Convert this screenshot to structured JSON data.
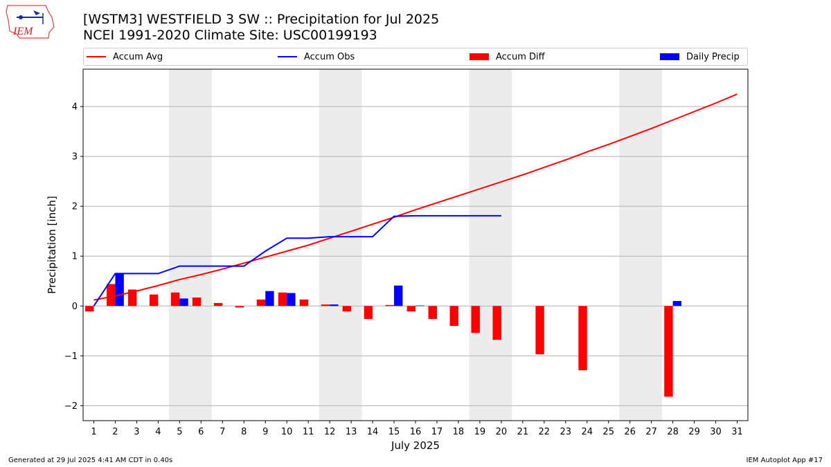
{
  "header": {
    "title_line1": "[WSTM3] WESTFIELD 3 SW :: Precipitation for Jul 2025",
    "title_line2": "NCEI 1991-2020 Climate Site: USC00199193",
    "logo_text": "IEM"
  },
  "legend": {
    "accum_avg": "Accum Avg",
    "accum_obs": "Accum Obs",
    "accum_diff": "Accum Diff",
    "daily_precip": "Daily Precip"
  },
  "footer": {
    "generated": "Generated at 29 Jul 2025 4:41 AM CDT in 0.40s",
    "app": "IEM Autoplot App #17"
  },
  "colors": {
    "avg": "#ff0000",
    "obs": "#0000ff",
    "diff": "#ff0000",
    "daily": "#0000ff",
    "weekend": "#ececec",
    "grid": "#b0b0b0"
  },
  "chart_data": {
    "type": "bar",
    "title": "[WSTM3] WESTFIELD 3 SW :: Precipitation for Jul 2025",
    "xlabel": "July 2025",
    "ylabel": "Precipitation [inch]",
    "ylim": [
      -2.3,
      4.75
    ],
    "xlim": [
      0.5,
      31.5
    ],
    "yticks": [
      -2,
      -1,
      0,
      1,
      2,
      3,
      4
    ],
    "ytick_labels": [
      "−2",
      "−1",
      "0",
      "1",
      "2",
      "3",
      "4"
    ],
    "grid": "y",
    "legend_position": "top",
    "categories": [
      1,
      2,
      3,
      4,
      5,
      6,
      7,
      8,
      9,
      10,
      11,
      12,
      13,
      14,
      15,
      16,
      17,
      18,
      19,
      20,
      21,
      22,
      23,
      24,
      25,
      26,
      27,
      28,
      29,
      30,
      31
    ],
    "weekend_spans": [
      [
        4.5,
        6.5
      ],
      [
        11.5,
        13.5
      ],
      [
        18.5,
        20.5
      ],
      [
        25.5,
        27.5
      ]
    ],
    "series": [
      {
        "name": "Accum Avg",
        "kind": "line",
        "x": [
          1,
          2,
          3,
          4,
          5,
          6,
          7,
          8,
          9,
          10,
          11,
          12,
          13,
          14,
          15,
          16,
          17,
          18,
          19,
          20,
          21,
          22,
          23,
          24,
          25,
          26,
          27,
          28,
          29,
          30,
          31
        ],
        "values": [
          0.12,
          0.2,
          0.3,
          0.41,
          0.53,
          0.63,
          0.74,
          0.86,
          0.98,
          1.1,
          1.22,
          1.36,
          1.5,
          1.64,
          1.78,
          1.93,
          2.07,
          2.21,
          2.35,
          2.49,
          2.63,
          2.78,
          2.93,
          3.09,
          3.24,
          3.4,
          3.56,
          3.73,
          3.9,
          4.07,
          4.25
        ]
      },
      {
        "name": "Accum Obs",
        "kind": "line",
        "x": [
          1,
          2,
          3,
          4,
          5,
          6,
          7,
          8,
          9,
          10,
          11,
          12,
          13,
          14,
          15,
          16,
          17,
          18,
          19,
          20
        ],
        "values": [
          0.0,
          0.65,
          0.65,
          0.65,
          0.8,
          0.8,
          0.8,
          0.8,
          1.1,
          1.36,
          1.36,
          1.39,
          1.39,
          1.39,
          1.8,
          1.81,
          1.81,
          1.81,
          1.81,
          1.81
        ]
      },
      {
        "name": "Accum Diff",
        "kind": "bar",
        "offset": "left",
        "x": [
          1,
          2,
          3,
          4,
          5,
          6,
          7,
          8,
          9,
          10,
          11,
          12,
          13,
          14,
          15,
          16,
          17,
          18,
          19,
          20,
          22,
          24,
          28
        ],
        "values": [
          -0.11,
          0.44,
          0.33,
          0.23,
          0.27,
          0.17,
          0.06,
          -0.03,
          0.13,
          0.27,
          0.13,
          0.03,
          -0.11,
          -0.26,
          0.02,
          -0.11,
          -0.26,
          -0.4,
          -0.54,
          -0.68,
          -0.97,
          -1.29,
          -1.82
        ]
      },
      {
        "name": "Daily Precip",
        "kind": "bar",
        "offset": "right",
        "x": [
          2,
          5,
          9,
          10,
          12,
          15,
          16,
          28
        ],
        "values": [
          0.65,
          0.15,
          0.3,
          0.26,
          0.03,
          0.41,
          0.01,
          0.1
        ]
      }
    ]
  }
}
